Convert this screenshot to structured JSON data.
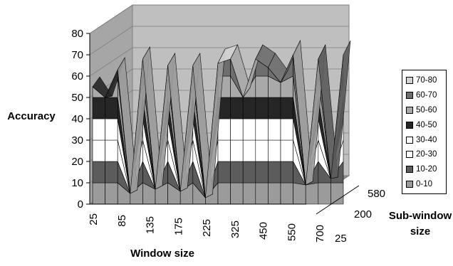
{
  "chart_data": {
    "type": "surface-3d",
    "title": "",
    "ylabel": "Accuracy",
    "xlabel": "Window size",
    "zlabel_line1": "Sub-window",
    "zlabel_line2": "size",
    "y_range": [
      0,
      80
    ],
    "y_ticks": [
      "0",
      "10",
      "20",
      "30",
      "40",
      "50",
      "60",
      "70",
      "80"
    ],
    "x_ticks": [
      "25",
      "85",
      "135",
      "175",
      "225",
      "325",
      "450",
      "550",
      "700"
    ],
    "z_ticks": [
      "25",
      "200",
      "580"
    ],
    "legend_position": "right",
    "legend": [
      {
        "label": "70-80",
        "color": "#d3d3d3"
      },
      {
        "label": "60-70",
        "color": "#6e6e6e"
      },
      {
        "label": "50-60",
        "color": "#a9a9a9"
      },
      {
        "label": "40-50",
        "color": "#262626"
      },
      {
        "label": "30-40",
        "color": "#ffffff"
      },
      {
        "label": "20-30",
        "color": "#ffffff"
      },
      {
        "label": "10-20",
        "color": "#5c5c5c"
      },
      {
        "label": "0-10",
        "color": "#9b9b9b"
      }
    ],
    "surface_profile_top": [
      57,
      48,
      66,
      4,
      71,
      6,
      68,
      5,
      68,
      2,
      70,
      72,
      52,
      72,
      68,
      60,
      74,
      8,
      72,
      10,
      74
    ],
    "surface_profile_front": [
      55,
      50,
      63,
      5,
      68,
      7,
      65,
      6,
      65,
      3,
      66,
      68,
      50,
      68,
      64,
      57,
      70,
      9,
      68,
      12,
      70
    ]
  }
}
